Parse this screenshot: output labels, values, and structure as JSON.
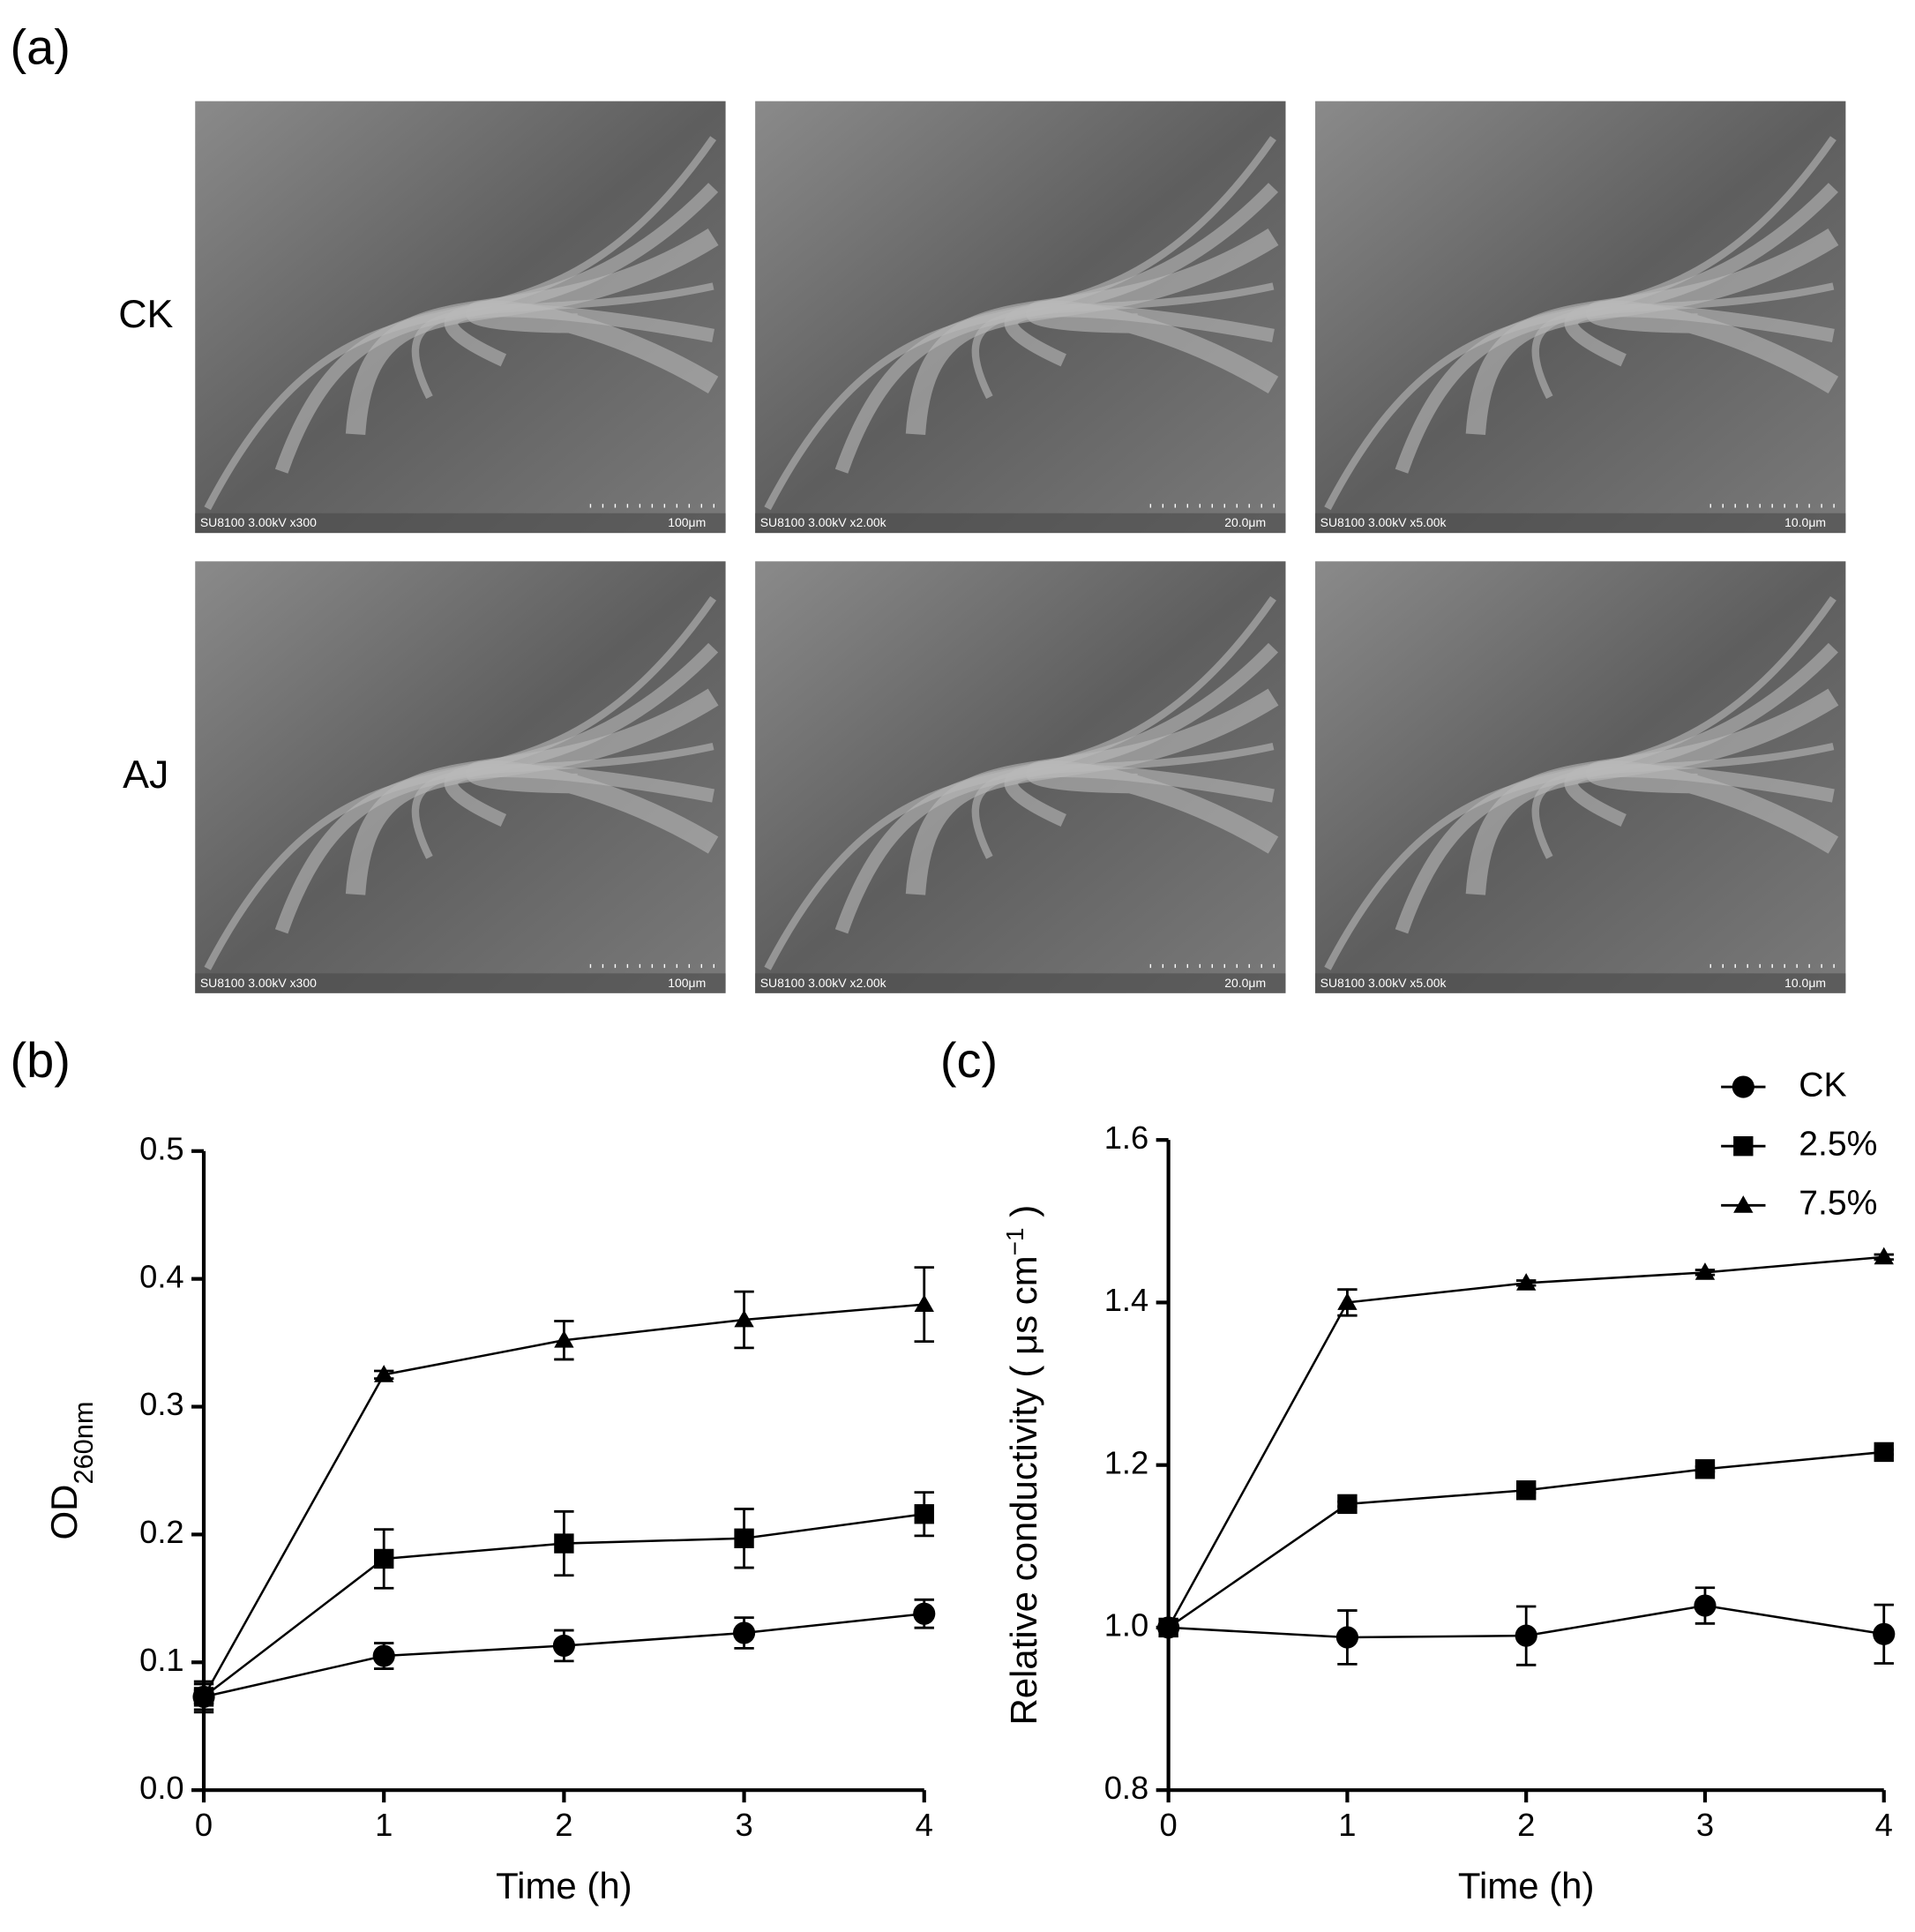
{
  "panels": {
    "a": "(a)",
    "b": "(b)",
    "c": "(c)"
  },
  "sem": {
    "rows": [
      "CK",
      "AJ"
    ],
    "images": [
      [
        {
          "caption": "SU8100 3.00kV x300",
          "scale": "100μm"
        },
        {
          "caption": "SU8100 3.00kV x2.00k",
          "scale": "20.0μm"
        },
        {
          "caption": "SU8100 3.00kV x5.00k",
          "scale": "10.0μm"
        }
      ],
      [
        {
          "caption": "SU8100 3.00kV x300",
          "scale": "100μm"
        },
        {
          "caption": "SU8100 3.00kV x2.00k",
          "scale": "20.0μm"
        },
        {
          "caption": "SU8100 3.00kV x5.00k",
          "scale": "10.0μm"
        }
      ]
    ]
  },
  "chart_data": [
    {
      "type": "line",
      "x_label": "Time (h)",
      "y_label": "OD",
      "y_label_sub": "260nm",
      "x": [
        0,
        1,
        2,
        3,
        4
      ],
      "xlim": [
        0,
        4
      ],
      "xticks": [
        0,
        1,
        2,
        3,
        4
      ],
      "ylim": [
        0,
        0.5
      ],
      "yticks": [
        {
          "value": 0,
          "label": "0.0"
        },
        0.1,
        0.2,
        0.3,
        0.4,
        0.5
      ],
      "series": [
        {
          "marker": "circle",
          "color": "#000000",
          "values": [
            0.073,
            0.105,
            0.113,
            0.123,
            0.138
          ],
          "errors": [
            0.01,
            0.01,
            0.012,
            0.012,
            0.011
          ]
        },
        {
          "marker": "square",
          "color": "#000000",
          "values": [
            0.073,
            0.181,
            0.193,
            0.197,
            0.216
          ],
          "errors": [
            0.012,
            0.023,
            0.025,
            0.023,
            0.017
          ]
        },
        {
          "marker": "triangle",
          "color": "#000000",
          "values": [
            0.073,
            0.325,
            0.352,
            0.368,
            0.38
          ],
          "errors": [
            0.005,
            0.003,
            0.015,
            0.022,
            0.029
          ]
        }
      ]
    },
    {
      "type": "line",
      "x_label": "Time (h)",
      "y_label": "Relative conductivity ( μs cm",
      "y_label_sup": "−1",
      "y_label_end": " )",
      "x": [
        0,
        1,
        2,
        3,
        4
      ],
      "xlim": [
        0,
        4
      ],
      "xticks": [
        0,
        1,
        2,
        3,
        4
      ],
      "ylim": [
        0.8,
        1.6
      ],
      "yticks": [
        0.8,
        {
          "value": 1,
          "label": "1.0"
        },
        1.2,
        1.4,
        1.6
      ],
      "legend": "top-right",
      "series": [
        {
          "name": "CK",
          "marker": "circle",
          "color": "#000000",
          "values": [
            1.0,
            0.988,
            0.99,
            1.027,
            0.992
          ],
          "errors": [
            0.005,
            0.033,
            0.036,
            0.022,
            0.036
          ]
        },
        {
          "name": "2.5%",
          "marker": "square",
          "color": "#000000",
          "values": [
            1.0,
            1.152,
            1.169,
            1.195,
            1.216
          ],
          "errors": [
            0.003,
            0.003,
            0.003,
            0.003,
            0.003
          ]
        },
        {
          "name": "7.5%",
          "marker": "triangle",
          "color": "#000000",
          "values": [
            1.0,
            1.4,
            1.424,
            1.437,
            1.456
          ],
          "errors": [
            0.003,
            0.016,
            0.003,
            0.003,
            0.003
          ]
        }
      ]
    }
  ]
}
